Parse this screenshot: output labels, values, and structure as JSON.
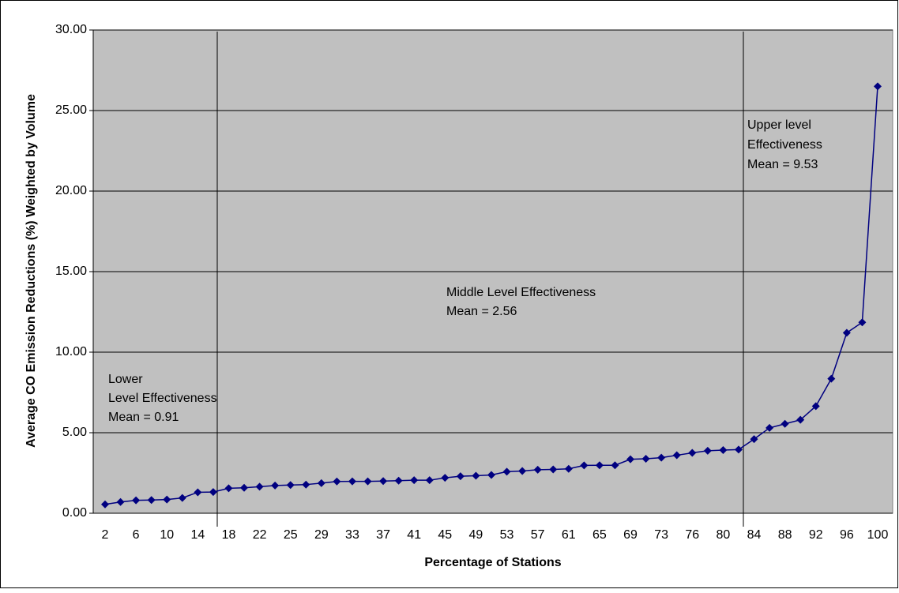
{
  "chart_data": {
    "type": "line",
    "x_label": "Percentage of Stations",
    "y_label": "Average CO Emission Reductions (%)  Weighted by Volume",
    "categories": [
      "2",
      null,
      "6",
      null,
      "10",
      null,
      "14",
      null,
      "18",
      null,
      "22",
      null,
      "25",
      null,
      "29",
      null,
      "33",
      null,
      "37",
      null,
      "41",
      null,
      "45",
      null,
      "49",
      null,
      "53",
      null,
      "57",
      null,
      "61",
      null,
      "65",
      null,
      "69",
      null,
      "73",
      null,
      "76",
      null,
      "80",
      null,
      "84",
      null,
      "88",
      null,
      "92",
      null,
      "96",
      null,
      "100"
    ],
    "series": [
      {
        "color": "#000080",
        "values": [
          0.55,
          0.7,
          0.8,
          0.82,
          0.85,
          0.95,
          1.3,
          1.32,
          1.55,
          1.58,
          1.65,
          1.72,
          1.75,
          1.78,
          1.87,
          1.97,
          1.98,
          1.98,
          2.0,
          2.02,
          2.05,
          2.05,
          2.2,
          2.3,
          2.33,
          2.38,
          2.58,
          2.62,
          2.7,
          2.72,
          2.76,
          2.97,
          2.98,
          2.98,
          3.35,
          3.38,
          3.45,
          3.6,
          3.75,
          3.88,
          3.92,
          3.95,
          4.6,
          5.3,
          5.55,
          5.8,
          6.65,
          8.35,
          11.2,
          11.85,
          26.5
        ]
      }
    ],
    "ylim": [
      0,
      30
    ],
    "yticks": [
      {
        "value": 0,
        "label": "0.00"
      },
      {
        "value": 5,
        "label": "5.00"
      },
      {
        "value": 10,
        "label": "10.00"
      },
      {
        "value": 15,
        "label": "15.00"
      },
      {
        "value": 20,
        "label": "20.00"
      },
      {
        "value": 25,
        "label": "25.00"
      },
      {
        "value": 30,
        "label": "30.00"
      }
    ],
    "grid": true,
    "annotations": [
      {
        "lines": [
          "Lower",
          "Level Effectiveness",
          "Mean = 0.91"
        ]
      },
      {
        "lines": [
          "Middle Level Effectiveness",
          "Mean = 2.56"
        ]
      },
      {
        "lines": [
          "Upper level",
          "Effectiveness",
          "Mean = 9.53"
        ]
      }
    ]
  }
}
